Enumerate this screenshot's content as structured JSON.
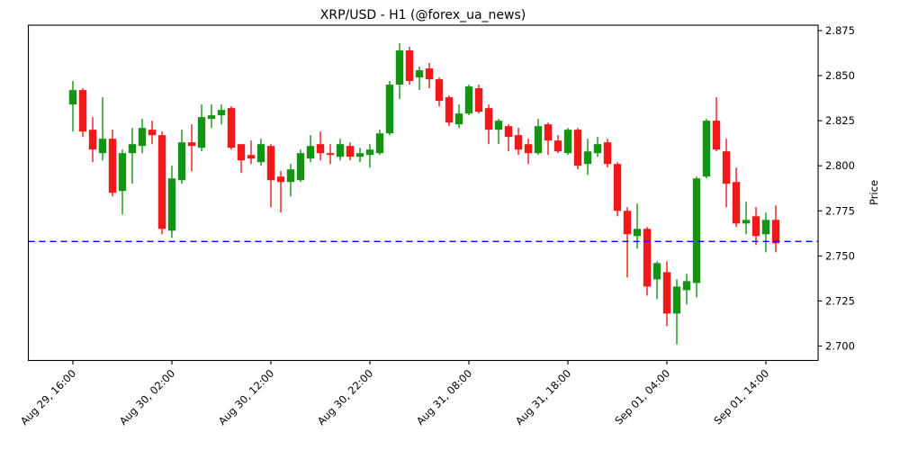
{
  "title": "XRP/USD - H1 (@forex_ua_news)",
  "chart_data": {
    "type": "candlestick",
    "symbol": "XRP/USD",
    "timeframe": "H1",
    "source_handle": "@forex_ua_news",
    "ylabel": "Price",
    "ylim": [
      2.692,
      2.878
    ],
    "y_ticks": [
      "2.700",
      "2.725",
      "2.750",
      "2.775",
      "2.800",
      "2.825",
      "2.850",
      "2.875"
    ],
    "x_ticks": [
      {
        "index": 0,
        "label": "Aug 29, 16:00"
      },
      {
        "index": 10,
        "label": "Aug 30, 02:00"
      },
      {
        "index": 20,
        "label": "Aug 30, 12:00"
      },
      {
        "index": 30,
        "label": "Aug 30, 22:00"
      },
      {
        "index": 40,
        "label": "Aug 31, 08:00"
      },
      {
        "index": 50,
        "label": "Aug 31, 18:00"
      },
      {
        "index": 60,
        "label": "Sep 01, 04:00"
      },
      {
        "index": 70,
        "label": "Sep 01, 14:00"
      }
    ],
    "hline": {
      "value": 2.758,
      "color": "#0000ff",
      "style": "dashed"
    },
    "colors": {
      "up": "#149414",
      "down": "#f01818",
      "axis": "#000000",
      "background": "#ffffff"
    },
    "grid": false,
    "legend": null,
    "columns": [
      "time",
      "open",
      "high",
      "low",
      "close"
    ],
    "candles": [
      [
        "Aug 29 16:00",
        2.834,
        2.847,
        2.819,
        2.842
      ],
      [
        "Aug 29 17:00",
        2.842,
        2.843,
        2.816,
        2.819
      ],
      [
        "Aug 29 18:00",
        2.82,
        2.827,
        2.802,
        2.809
      ],
      [
        "Aug 29 19:00",
        2.807,
        2.838,
        2.803,
        2.815
      ],
      [
        "Aug 29 20:00",
        2.815,
        2.82,
        2.783,
        2.785
      ],
      [
        "Aug 29 21:00",
        2.786,
        2.809,
        2.773,
        2.807
      ],
      [
        "Aug 29 22:00",
        2.807,
        2.821,
        2.79,
        2.812
      ],
      [
        "Aug 29 23:00",
        2.811,
        2.826,
        2.807,
        2.821
      ],
      [
        "Aug 30 00:00",
        2.82,
        2.825,
        2.812,
        2.817
      ],
      [
        "Aug 30 01:00",
        2.817,
        2.819,
        2.762,
        2.765
      ],
      [
        "Aug 30 02:00",
        2.764,
        2.8,
        2.76,
        2.793
      ],
      [
        "Aug 30 03:00",
        2.792,
        2.82,
        2.79,
        2.813
      ],
      [
        "Aug 30 04:00",
        2.813,
        2.823,
        2.797,
        2.811
      ],
      [
        "Aug 30 05:00",
        2.81,
        2.834,
        2.808,
        2.827
      ],
      [
        "Aug 30 06:00",
        2.826,
        2.834,
        2.821,
        2.828
      ],
      [
        "Aug 30 07:00",
        2.828,
        2.834,
        2.823,
        2.831
      ],
      [
        "Aug 30 08:00",
        2.832,
        2.833,
        2.809,
        2.81
      ],
      [
        "Aug 30 09:00",
        2.812,
        2.812,
        2.796,
        2.803
      ],
      [
        "Aug 30 10:00",
        2.806,
        2.814,
        2.801,
        2.804
      ],
      [
        "Aug 30 11:00",
        2.802,
        2.815,
        2.8,
        2.812
      ],
      [
        "Aug 30 12:00",
        2.811,
        2.812,
        2.777,
        2.792
      ],
      [
        "Aug 30 13:00",
        2.794,
        2.797,
        2.774,
        2.791
      ],
      [
        "Aug 30 14:00",
        2.791,
        2.801,
        2.783,
        2.798
      ],
      [
        "Aug 30 15:00",
        2.792,
        2.809,
        2.791,
        2.807
      ],
      [
        "Aug 30 16:00",
        2.804,
        2.817,
        2.802,
        2.811
      ],
      [
        "Aug 30 17:00",
        2.812,
        2.819,
        2.803,
        2.807
      ],
      [
        "Aug 30 18:00",
        2.807,
        2.812,
        2.801,
        2.806
      ],
      [
        "Aug 30 19:00",
        2.805,
        2.815,
        2.803,
        2.812
      ],
      [
        "Aug 30 20:00",
        2.811,
        2.813,
        2.803,
        2.805
      ],
      [
        "Aug 30 21:00",
        2.805,
        2.81,
        2.802,
        2.807
      ],
      [
        "Aug 30 22:00",
        2.806,
        2.812,
        2.799,
        2.809
      ],
      [
        "Aug 30 23:00",
        2.807,
        2.82,
        2.806,
        2.818
      ],
      [
        "Aug 31 00:00",
        2.818,
        2.847,
        2.817,
        2.845
      ],
      [
        "Aug 31 01:00",
        2.845,
        2.868,
        2.837,
        2.864
      ],
      [
        "Aug 31 02:00",
        2.864,
        2.866,
        2.845,
        2.847
      ],
      [
        "Aug 31 03:00",
        2.849,
        2.855,
        2.842,
        2.853
      ],
      [
        "Aug 31 04:00",
        2.854,
        2.857,
        2.843,
        2.848
      ],
      [
        "Aug 31 05:00",
        2.848,
        2.849,
        2.833,
        2.836
      ],
      [
        "Aug 31 06:00",
        2.838,
        2.839,
        2.822,
        2.824
      ],
      [
        "Aug 31 07:00",
        2.823,
        2.834,
        2.821,
        2.829
      ],
      [
        "Aug 31 08:00",
        2.829,
        2.845,
        2.828,
        2.844
      ],
      [
        "Aug 31 09:00",
        2.843,
        2.845,
        2.829,
        2.83
      ],
      [
        "Aug 31 10:00",
        2.832,
        2.834,
        2.812,
        2.82
      ],
      [
        "Aug 31 11:00",
        2.82,
        2.826,
        2.812,
        2.825
      ],
      [
        "Aug 31 12:00",
        2.822,
        2.823,
        2.808,
        2.816
      ],
      [
        "Aug 31 13:00",
        2.817,
        2.821,
        2.806,
        2.809
      ],
      [
        "Aug 31 14:00",
        2.812,
        2.815,
        2.801,
        2.807
      ],
      [
        "Aug 31 15:00",
        2.807,
        2.826,
        2.806,
        2.822
      ],
      [
        "Aug 31 16:00",
        2.823,
        2.824,
        2.806,
        2.814
      ],
      [
        "Aug 31 17:00",
        2.814,
        2.817,
        2.807,
        2.808
      ],
      [
        "Aug 31 18:00",
        2.807,
        2.821,
        2.806,
        2.82
      ],
      [
        "Aug 31 19:00",
        2.82,
        2.821,
        2.798,
        2.8
      ],
      [
        "Aug 31 20:00",
        2.801,
        2.815,
        2.795,
        2.808
      ],
      [
        "Aug 31 21:00",
        2.807,
        2.816,
        2.805,
        2.812
      ],
      [
        "Aug 31 22:00",
        2.813,
        2.815,
        2.799,
        2.801
      ],
      [
        "Aug 31 23:00",
        2.801,
        2.802,
        2.772,
        2.775
      ],
      [
        "Sep 01 00:00",
        2.775,
        2.777,
        2.738,
        2.762
      ],
      [
        "Sep 01 01:00",
        2.761,
        2.779,
        2.754,
        2.765
      ],
      [
        "Sep 01 02:00",
        2.765,
        2.766,
        2.728,
        2.733
      ],
      [
        "Sep 01 03:00",
        2.737,
        2.747,
        2.726,
        2.746
      ],
      [
        "Sep 01 04:00",
        2.741,
        2.747,
        2.711,
        2.718
      ],
      [
        "Sep 01 05:00",
        2.718,
        2.737,
        2.701,
        2.733
      ],
      [
        "Sep 01 06:00",
        2.731,
        2.74,
        2.723,
        2.736
      ],
      [
        "Sep 01 07:00",
        2.735,
        2.794,
        2.727,
        2.793
      ],
      [
        "Sep 01 08:00",
        2.794,
        2.826,
        2.793,
        2.825
      ],
      [
        "Sep 01 09:00",
        2.825,
        2.838,
        2.808,
        2.809
      ],
      [
        "Sep 01 10:00",
        2.808,
        2.815,
        2.777,
        2.79
      ],
      [
        "Sep 01 11:00",
        2.791,
        2.799,
        2.766,
        2.768
      ],
      [
        "Sep 01 12:00",
        2.768,
        2.78,
        2.762,
        2.77
      ],
      [
        "Sep 01 13:00",
        2.772,
        2.777,
        2.756,
        2.761
      ],
      [
        "Sep 01 14:00",
        2.762,
        2.774,
        2.752,
        2.77
      ],
      [
        "Sep 01 15:00",
        2.77,
        2.778,
        2.752,
        2.757
      ]
    ]
  }
}
